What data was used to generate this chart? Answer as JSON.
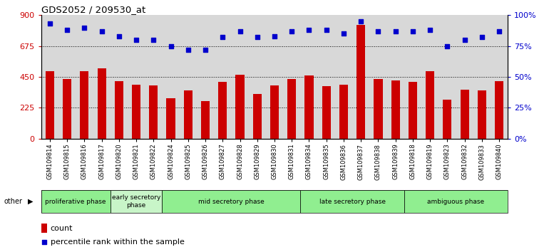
{
  "title": "GDS2052 / 209530_at",
  "categories": [
    "GSM109814",
    "GSM109815",
    "GSM109816",
    "GSM109817",
    "GSM109820",
    "GSM109821",
    "GSM109822",
    "GSM109824",
    "GSM109825",
    "GSM109826",
    "GSM109827",
    "GSM109828",
    "GSM109829",
    "GSM109830",
    "GSM109831",
    "GSM109834",
    "GSM109835",
    "GSM109836",
    "GSM109837",
    "GSM109838",
    "GSM109839",
    "GSM109818",
    "GSM109819",
    "GSM109823",
    "GSM109832",
    "GSM109833",
    "GSM109840"
  ],
  "bar_values": [
    490,
    435,
    490,
    510,
    420,
    395,
    385,
    295,
    350,
    275,
    415,
    465,
    325,
    385,
    435,
    460,
    380,
    395,
    830,
    435,
    425,
    415,
    490,
    285,
    355,
    350,
    420
  ],
  "dot_values": [
    93,
    88,
    90,
    87,
    83,
    80,
    80,
    75,
    72,
    72,
    82,
    87,
    82,
    83,
    87,
    88,
    88,
    85,
    95,
    87,
    87,
    87,
    88,
    75,
    80,
    82,
    87
  ],
  "bar_color": "#cc0000",
  "dot_color": "#0000cc",
  "ylim_left": [
    0,
    900
  ],
  "ylim_right": [
    0,
    100
  ],
  "yticks_left": [
    0,
    225,
    450,
    675,
    900
  ],
  "yticks_right": [
    0,
    25,
    50,
    75,
    100
  ],
  "ytick_labels_left": [
    "0",
    "225",
    "450",
    "675",
    "900"
  ],
  "ytick_labels_right": [
    "0%",
    "25%",
    "50%",
    "75%",
    "100%"
  ],
  "grid_values": [
    225,
    450,
    675
  ],
  "phase_groups": [
    {
      "label": "proliferative phase",
      "start": 0,
      "end": 4,
      "color": "#90ee90"
    },
    {
      "label": "early secretory\nphase",
      "start": 4,
      "end": 7,
      "color": "#c8f5c8"
    },
    {
      "label": "mid secretory phase",
      "start": 7,
      "end": 15,
      "color": "#90ee90"
    },
    {
      "label": "late secretory phase",
      "start": 15,
      "end": 21,
      "color": "#90ee90"
    },
    {
      "label": "ambiguous phase",
      "start": 21,
      "end": 27,
      "color": "#90ee90"
    }
  ],
  "legend_count_label": "count",
  "legend_pct_label": "percentile rank within the sample",
  "other_label": "other",
  "plot_bg_color": "#d8d8d8"
}
